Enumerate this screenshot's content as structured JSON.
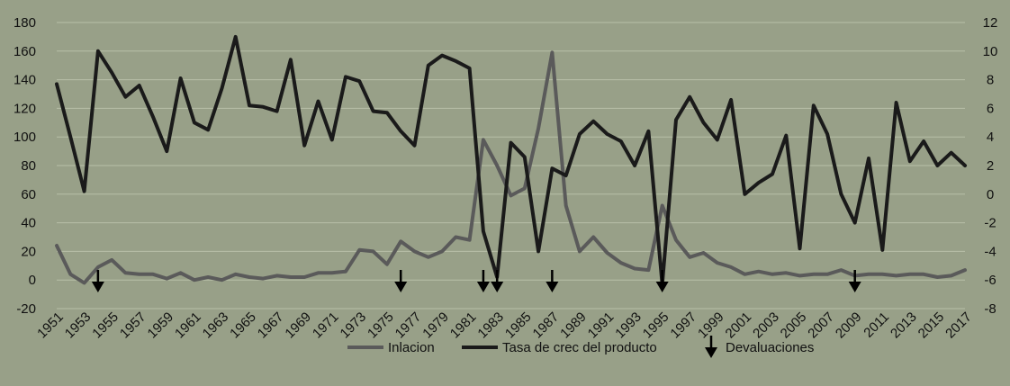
{
  "chart_data": {
    "type": "line",
    "title": "",
    "x": [
      1951,
      1952,
      1953,
      1954,
      1955,
      1956,
      1957,
      1958,
      1959,
      1960,
      1961,
      1962,
      1963,
      1964,
      1965,
      1966,
      1967,
      1968,
      1969,
      1970,
      1971,
      1972,
      1973,
      1974,
      1975,
      1976,
      1977,
      1978,
      1979,
      1980,
      1981,
      1982,
      1983,
      1984,
      1985,
      1986,
      1987,
      1988,
      1989,
      1990,
      1991,
      1992,
      1993,
      1994,
      1995,
      1996,
      1997,
      1998,
      1999,
      2000,
      2001,
      2002,
      2003,
      2004,
      2005,
      2006,
      2007,
      2008,
      2009,
      2010,
      2011,
      2012,
      2013,
      2014,
      2015,
      2016,
      2017
    ],
    "x_tick_labels": [
      "1951",
      "1953",
      "1955",
      "1957",
      "1959",
      "1961",
      "1963",
      "1965",
      "1967",
      "1969",
      "1971",
      "1973",
      "1975",
      "1977",
      "1979",
      "1981",
      "1983",
      "1985",
      "1987",
      "1989",
      "1991",
      "1993",
      "1995",
      "1997",
      "1999",
      "2001",
      "2003",
      "2005",
      "2007",
      "2009",
      "2011",
      "2013",
      "2015",
      "2017"
    ],
    "y_left": {
      "min": -20,
      "max": 180,
      "ticks": [
        "-20",
        "0",
        "20",
        "40",
        "60",
        "80",
        "100",
        "120",
        "140",
        "160",
        "180"
      ]
    },
    "y_right": {
      "min": -8,
      "max": 12,
      "ticks": [
        "-8",
        "-6",
        "-4",
        "-2",
        "0",
        "2",
        "4",
        "6",
        "8",
        "10",
        "12"
      ]
    },
    "grid": true,
    "legend_position": "bottom",
    "series": [
      {
        "name": "Inlacion",
        "axis": "left",
        "color": "#5a5a5a",
        "values": [
          24,
          4,
          -2,
          9,
          14,
          5,
          4,
          4,
          1,
          5,
          0,
          2,
          0,
          4,
          2,
          1,
          3,
          2,
          2,
          5,
          5,
          6,
          21,
          20,
          11,
          27,
          20,
          16,
          20,
          30,
          28,
          98,
          80,
          59,
          64,
          106,
          159,
          52,
          20,
          30,
          19,
          12,
          8,
          7,
          52,
          28,
          16,
          19,
          12,
          9,
          4,
          6,
          4,
          5,
          3,
          4,
          4,
          7,
          3,
          4,
          4,
          3,
          4,
          4,
          2,
          3,
          7
        ]
      },
      {
        "name": "Tasa de crec del producto",
        "axis": "right",
        "color": "#1a1a1a",
        "values": [
          7.7,
          4.0,
          0.2,
          10.0,
          8.5,
          6.8,
          7.6,
          5.4,
          3.0,
          8.1,
          5.0,
          4.5,
          7.4,
          11.0,
          6.2,
          6.1,
          5.8,
          9.4,
          3.4,
          6.5,
          3.8,
          8.2,
          7.9,
          5.8,
          5.7,
          4.4,
          3.4,
          9.0,
          9.7,
          9.3,
          8.8,
          -2.6,
          -5.8,
          3.6,
          2.6,
          -4.0,
          1.8,
          1.3,
          4.2,
          5.1,
          4.2,
          3.7,
          2.0,
          4.4,
          -6.3,
          5.2,
          6.8,
          5.0,
          3.8,
          6.6,
          0.0,
          0.8,
          1.4,
          4.1,
          -3.8,
          6.2,
          4.2,
          0.0,
          -2.0,
          2.5,
          -3.9,
          6.4,
          2.3,
          3.7,
          2.0,
          2.9,
          2.0
        ]
      }
    ],
    "devaluation_years": [
      1954,
      1976,
      1982,
      1983,
      1987,
      1995,
      2009
    ],
    "legend": [
      "Inlacion",
      "Tasa de crec del producto",
      "Devaluaciones"
    ]
  }
}
